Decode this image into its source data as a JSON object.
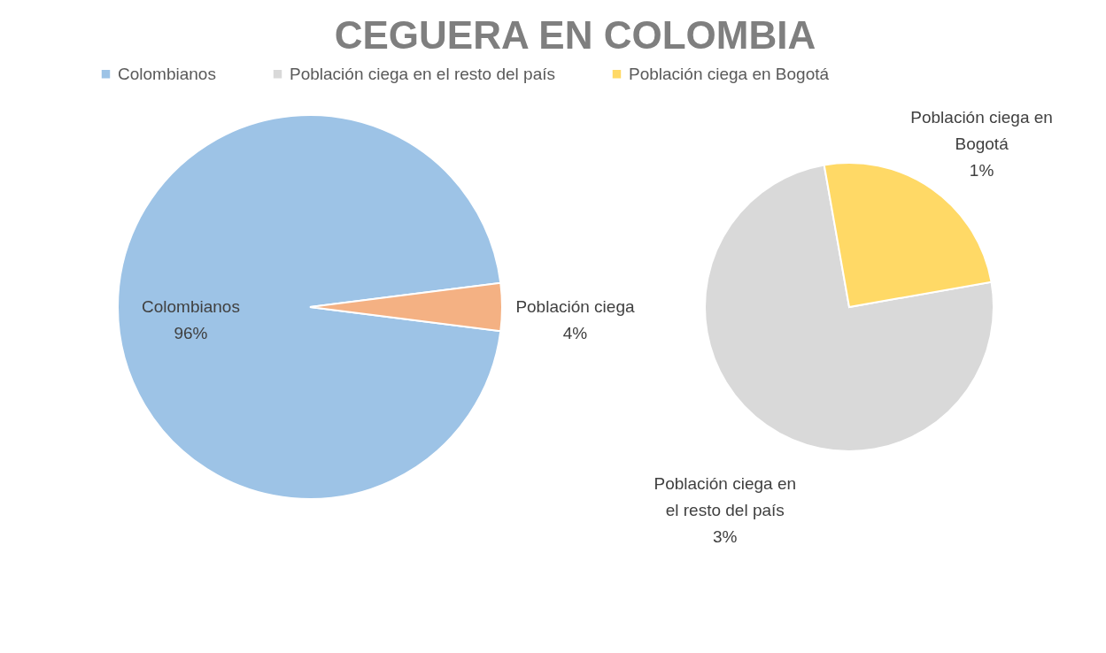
{
  "chart_data": [
    {
      "type": "pie",
      "title": "CEGUERA EN COLOMBIA",
      "categories": [
        "Colombianos",
        "Población ciega"
      ],
      "values": [
        96,
        4
      ],
      "colors": [
        "#9dc3e6",
        "#f4b183"
      ],
      "value_labels": [
        "96%",
        "4%"
      ],
      "legend": "top"
    },
    {
      "type": "pie",
      "categories": [
        "Población ciega en el resto del país",
        "Población ciega en Bogotá"
      ],
      "values": [
        3,
        1
      ],
      "colors": [
        "#d9d9d9",
        "#ffd966"
      ],
      "value_labels": [
        "3%",
        "1%"
      ],
      "legend": "top"
    }
  ]
}
